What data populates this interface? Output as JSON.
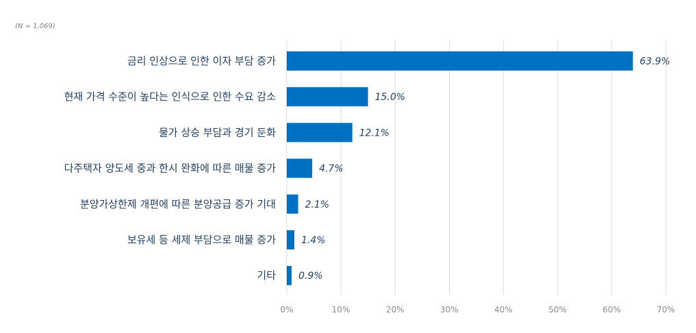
{
  "chart_data": {
    "type": "bar",
    "orientation": "horizontal",
    "note": "(N = 1,069)",
    "categories": [
      "금리 인상으로 인한 이자 부담 증가",
      "현재 가격 수준이 높다는 인식으로 인한 수요 감소",
      "물가 상승 부담과 경기 둔화",
      "다주택자 양도세 중과 한시 완화에 따른 매물 증가",
      "분양가상한제 개편에 따른 분양공급 증가 기대",
      "보유세 등 세제 부담으로 매물 증가",
      "기타"
    ],
    "values": [
      63.9,
      15.0,
      12.1,
      4.7,
      2.1,
      1.4,
      0.9
    ],
    "value_labels": [
      "63.9%",
      "15.0%",
      "12.1%",
      "4.7%",
      "2.1%",
      "1.4%",
      "0.9%"
    ],
    "xlim": [
      0,
      70
    ],
    "x_ticks": [
      0,
      10,
      20,
      30,
      40,
      50,
      60,
      70
    ],
    "x_tick_labels": [
      "0%",
      "10%",
      "20%",
      "30%",
      "40%",
      "50%",
      "60%",
      "70%"
    ],
    "grid": "vertical",
    "bar_color": "#0070c0",
    "title": "",
    "xlabel": "",
    "ylabel": ""
  }
}
